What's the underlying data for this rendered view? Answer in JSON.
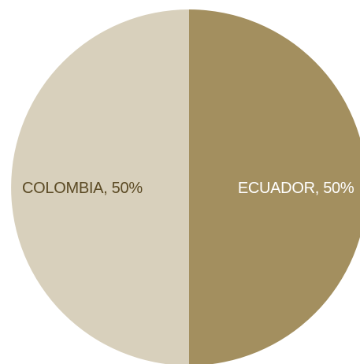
{
  "chart_data": {
    "type": "pie",
    "slices": [
      {
        "label": "ECUADOR, 50%",
        "category": "ECUADOR",
        "value": 50,
        "color": "#a38f5f",
        "label_color": "#ffffff"
      },
      {
        "label": "COLOMBIA, 50%",
        "category": "COLOMBIA",
        "value": 50,
        "color": "#d8d0bc",
        "label_color": "#5b4a24"
      }
    ],
    "start_angle_deg": 0,
    "direction": "clockwise"
  }
}
